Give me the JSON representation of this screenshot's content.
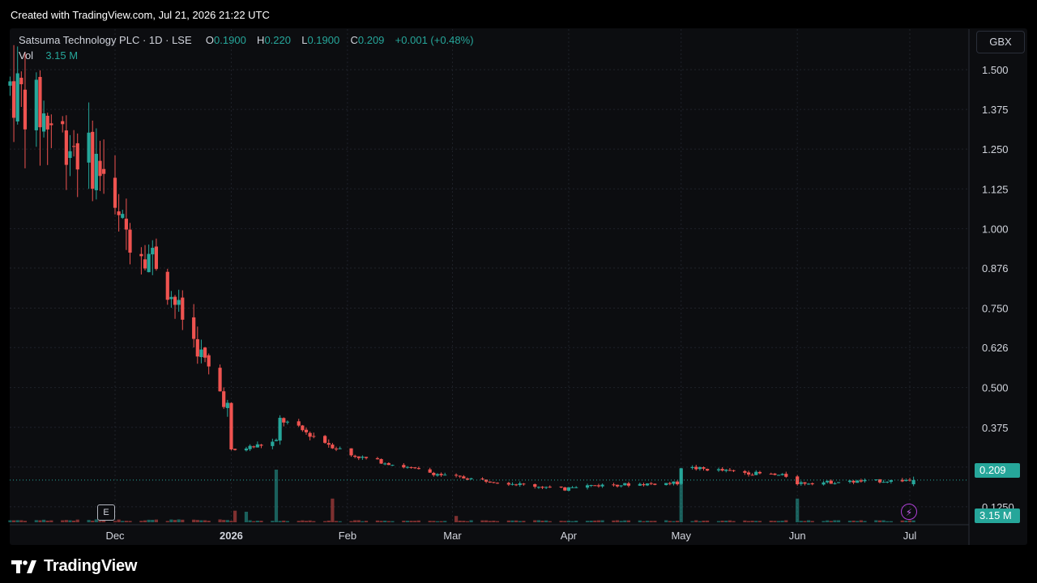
{
  "header": {
    "created": "Created with TradingView.com, Jul 21, 2026 21:22 UTC"
  },
  "legend": {
    "symbol": "Satsuma Technology PLC · 1D · LSE",
    "o_label": "O",
    "o_value": "0.1900",
    "h_label": "H",
    "h_value": "0.220",
    "l_label": "L",
    "l_value": "0.1900",
    "c_label": "C",
    "c_value": "0.209",
    "change": "+0.001 (+0.48%)",
    "vol_label": "Vol",
    "vol_value": "3.15 M"
  },
  "currency_button": "GBX",
  "badges": {
    "earnings": "E",
    "bolt": "⚡"
  },
  "footer": {
    "brand": "TradingView"
  },
  "colors": {
    "up": "#26a69a",
    "down": "#ef5350",
    "background": "#0c0d10",
    "grid": "#2a2e39"
  },
  "chart_data": {
    "type": "candlestick",
    "y_axis_ticks": [
      "1.500",
      "1.375",
      "1.250",
      "1.125",
      "1.000",
      "0.876",
      "0.750",
      "0.626",
      "0.500",
      "0.375",
      "0.250",
      "0.1250"
    ],
    "y_tick_values": [
      1.5,
      1.375,
      1.25,
      1.125,
      1.0,
      0.876,
      0.75,
      0.626,
      0.5,
      0.375,
      0.25,
      0.125
    ],
    "ylim": [
      0.0,
      1.5
    ],
    "x_axis_ticks": [
      "Dec",
      "2026",
      "Feb",
      "Mar",
      "Apr",
      "May",
      "Jun",
      "Jul"
    ],
    "x_tick_dates": [
      "2025-12-01",
      "2026-01-01",
      "2026-02-01",
      "2026-03-01",
      "2026-04-01",
      "2026-05-01",
      "2026-06-01",
      "2026-07-01"
    ],
    "x_range": [
      "2025-11-01",
      "2026-07-08"
    ],
    "last_price": "0.209",
    "last_volume": "3.15 M",
    "segments": [
      {
        "start": "2025-11-03",
        "end": "2025-11-28",
        "start_price": 1.45,
        "end_price": 1.18,
        "vol": 1.2
      },
      {
        "start": "2025-11-29",
        "end": "2025-12-12",
        "start_price": 1.05,
        "end_price": 0.9,
        "vol": 1.0
      },
      {
        "start": "2025-12-13",
        "end": "2025-12-31",
        "start_price": 0.86,
        "end_price": 0.44,
        "vol": 0.8
      },
      {
        "start": "2026-01-01",
        "end": "2026-01-13",
        "start_price": 0.3,
        "end_price": 0.33,
        "vol": 0.25
      },
      {
        "start": "2026-01-14",
        "end": "2026-01-31",
        "start_price": 0.4,
        "end_price": 0.3,
        "vol": 0.3
      },
      {
        "start": "2026-02-01",
        "end": "2026-02-28",
        "start_price": 0.29,
        "end_price": 0.22,
        "vol": 0.12
      },
      {
        "start": "2026-03-01",
        "end": "2026-03-31",
        "start_price": 0.22,
        "end_price": 0.18,
        "vol": 0.1
      },
      {
        "start": "2026-04-01",
        "end": "2026-04-30",
        "start_price": 0.19,
        "end_price": 0.2,
        "vol": 0.1
      },
      {
        "start": "2026-05-01",
        "end": "2026-05-31",
        "start_price": 0.25,
        "end_price": 0.22,
        "vol": 0.12
      },
      {
        "start": "2026-06-01",
        "end": "2026-07-02",
        "start_price": 0.2,
        "end_price": 0.209,
        "vol": 0.1
      }
    ],
    "volume_spikes": [
      {
        "date": "2026-01-13",
        "rel": 1.0,
        "dir": "up"
      },
      {
        "date": "2026-01-28",
        "rel": 0.45,
        "dir": "down"
      },
      {
        "date": "2026-05-01",
        "rel": 0.75,
        "dir": "up"
      },
      {
        "date": "2026-06-01",
        "rel": 0.45,
        "dir": "up"
      },
      {
        "date": "2026-01-02",
        "rel": 0.22,
        "dir": "down"
      },
      {
        "date": "2026-01-05",
        "rel": 0.2,
        "dir": "up"
      },
      {
        "date": "2026-03-02",
        "rel": 0.12,
        "dir": "down"
      }
    ]
  }
}
